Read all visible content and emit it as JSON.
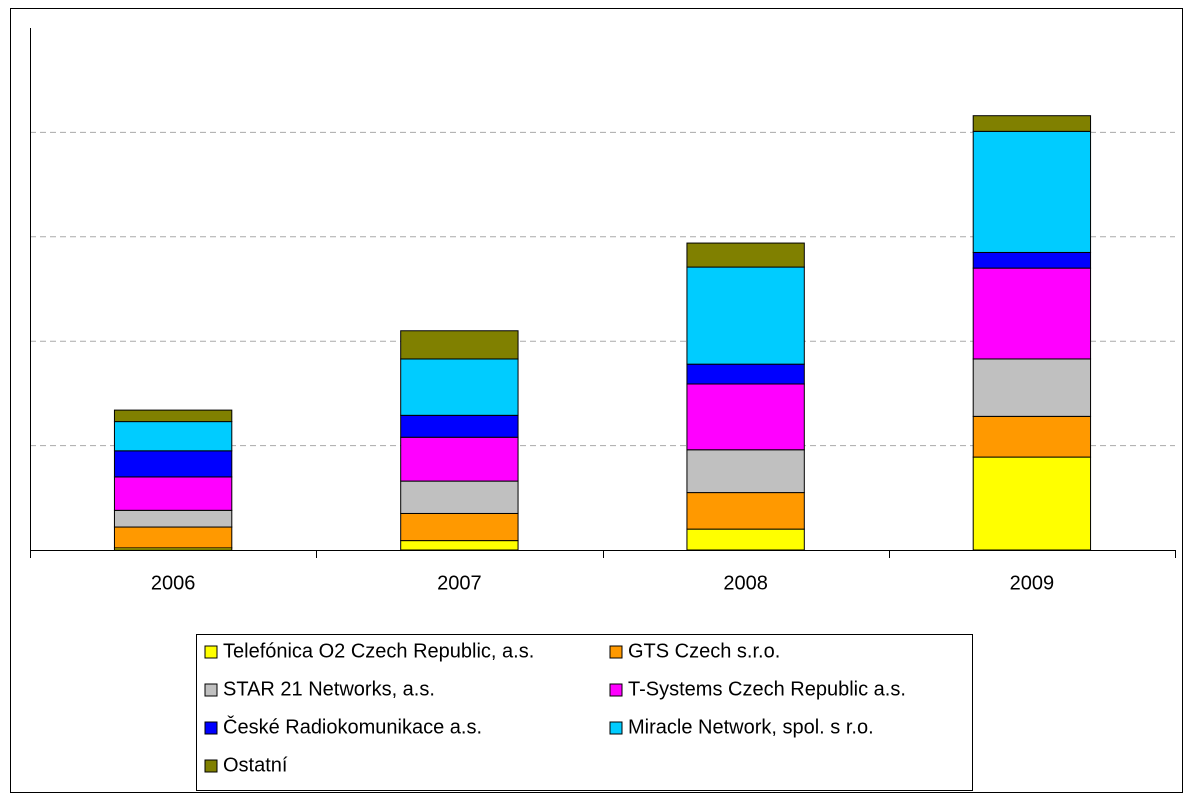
{
  "chart_data": {
    "type": "stacked_bar",
    "categories": [
      "2006",
      "2007",
      "2008",
      "2009"
    ],
    "series": [
      {
        "name": "Telefónica O2 Czech Republic, a.s.",
        "color": "#ffff00",
        "values": [
          0.02,
          0.09,
          0.2,
          0.89
        ]
      },
      {
        "name": "GTS Czech s.r.o.",
        "color": "#ff9900",
        "values": [
          0.2,
          0.26,
          0.35,
          0.39
        ]
      },
      {
        "name": "STAR 21 Networks, a.s.",
        "color": "#c0c0c0",
        "values": [
          0.16,
          0.31,
          0.41,
          0.55
        ]
      },
      {
        "name": "T-Systems Czech Republic a.s.",
        "color": "#ff00ff",
        "values": [
          0.32,
          0.42,
          0.63,
          0.87
        ]
      },
      {
        "name": "České Radiokomunikace a.s.",
        "color": "#0000ff",
        "values": [
          0.25,
          0.21,
          0.19,
          0.15
        ]
      },
      {
        "name": "Miracle Network, spol. s r.o.",
        "color": "#00ccff",
        "values": [
          0.28,
          0.54,
          0.93,
          1.16
        ]
      },
      {
        "name": "Ostatní",
        "color": "#808000",
        "values": [
          0.11,
          0.27,
          0.23,
          0.15
        ]
      }
    ],
    "ylim": [
      0,
      5
    ],
    "yticks": [
      0,
      1,
      2,
      3,
      4
    ],
    "ytick_labels": false,
    "grid": true,
    "legend": "bottom"
  }
}
